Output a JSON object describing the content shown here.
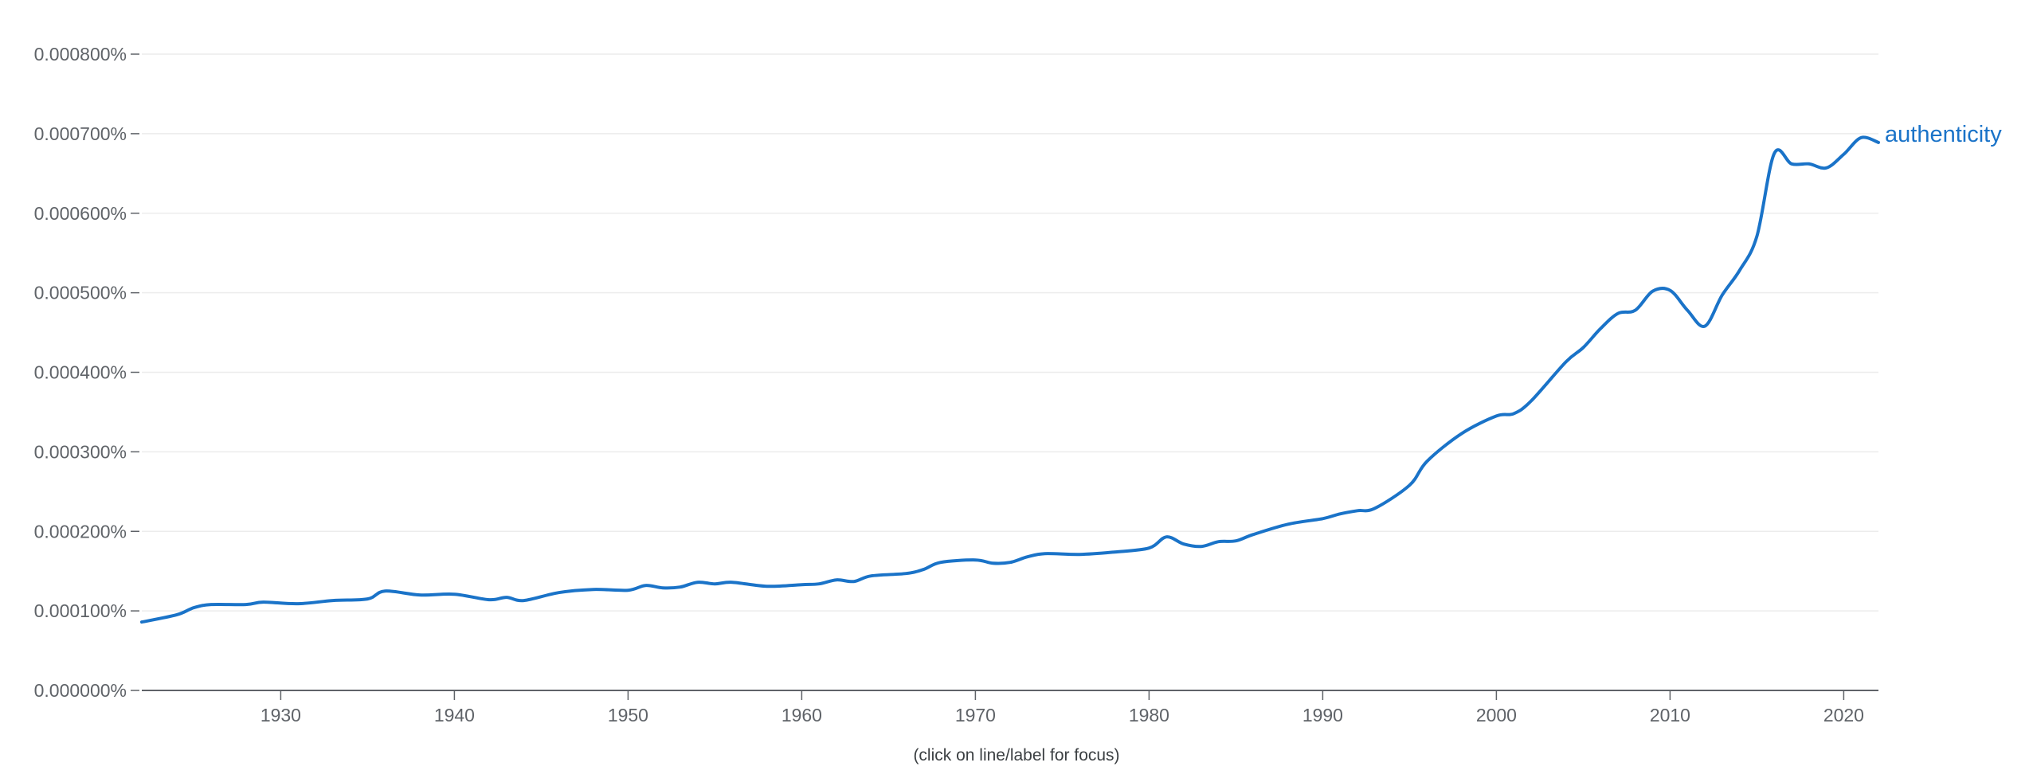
{
  "chart_data": {
    "type": "line",
    "title": "",
    "xlabel": "",
    "ylabel": "",
    "xlim": [
      1922,
      2022
    ],
    "ylim": [
      0,
      0.0008
    ],
    "y_unit": "%",
    "grid": true,
    "yticks": [
      {
        "value": 0.0,
        "label": "0.000000%"
      },
      {
        "value": 0.0001,
        "label": "0.000100%"
      },
      {
        "value": 0.0002,
        "label": "0.000200%"
      },
      {
        "value": 0.0003,
        "label": "0.000300%"
      },
      {
        "value": 0.0004,
        "label": "0.000400%"
      },
      {
        "value": 0.0005,
        "label": "0.000500%"
      },
      {
        "value": 0.0006,
        "label": "0.000600%"
      },
      {
        "value": 0.0007,
        "label": "0.000700%"
      },
      {
        "value": 0.0008,
        "label": "0.000800%"
      }
    ],
    "xticks": [
      {
        "value": 1930,
        "label": "1930"
      },
      {
        "value": 1940,
        "label": "1940"
      },
      {
        "value": 1950,
        "label": "1950"
      },
      {
        "value": 1960,
        "label": "1960"
      },
      {
        "value": 1970,
        "label": "1970"
      },
      {
        "value": 1980,
        "label": "1980"
      },
      {
        "value": 1990,
        "label": "1990"
      },
      {
        "value": 2000,
        "label": "2000"
      },
      {
        "value": 2010,
        "label": "2010"
      },
      {
        "value": 2020,
        "label": "2020"
      }
    ],
    "series": [
      {
        "name": "authenticity",
        "color": "#1a73c8",
        "x": [
          1922,
          1924,
          1925,
          1926,
          1928,
          1929,
          1931,
          1933,
          1935,
          1936,
          1938,
          1940,
          1942,
          1943,
          1944,
          1946,
          1948,
          1950,
          1951,
          1952,
          1953,
          1954,
          1955,
          1956,
          1958,
          1960,
          1961,
          1962,
          1963,
          1964,
          1966,
          1967,
          1968,
          1970,
          1971,
          1972,
          1973,
          1974,
          1976,
          1978,
          1980,
          1981,
          1982,
          1983,
          1984,
          1985,
          1986,
          1988,
          1990,
          1991,
          1992,
          1993,
          1995,
          1996,
          1998,
          2000,
          2001,
          2002,
          2004,
          2005,
          2006,
          2007,
          2008,
          2009,
          2010,
          2011,
          2012,
          2013,
          2014,
          2015,
          2016,
          2017,
          2018,
          2019,
          2020,
          2021,
          2022
        ],
        "values": [
          8.6e-05,
          9.5e-05,
          0.000104,
          0.000108,
          0.000108,
          0.000111,
          0.000109,
          0.000113,
          0.000115,
          0.000125,
          0.00012,
          0.000121,
          0.000114,
          0.000117,
          0.000113,
          0.000123,
          0.000127,
          0.000126,
          0.000132,
          0.000129,
          0.00013,
          0.000136,
          0.000134,
          0.000136,
          0.000131,
          0.000133,
          0.000134,
          0.000139,
          0.000137,
          0.000144,
          0.000147,
          0.000152,
          0.000161,
          0.000164,
          0.00016,
          0.000161,
          0.000168,
          0.000172,
          0.000171,
          0.000174,
          0.000179,
          0.000193,
          0.000184,
          0.000181,
          0.000187,
          0.000188,
          0.000196,
          0.000209,
          0.000216,
          0.000222,
          0.000226,
          0.000229,
          0.000258,
          0.000288,
          0.000323,
          0.000345,
          0.000348,
          0.000364,
          0.000413,
          0.000431,
          0.000455,
          0.000474,
          0.000478,
          0.000502,
          0.000503,
          0.000478,
          0.000458,
          0.000497,
          0.000528,
          0.000571,
          0.000675,
          0.000662,
          0.000662,
          0.000657,
          0.000674,
          0.000695,
          0.000689
        ]
      }
    ],
    "legend_position": "end-of-line"
  },
  "footer": {
    "note": "(click on line/label for focus)"
  }
}
